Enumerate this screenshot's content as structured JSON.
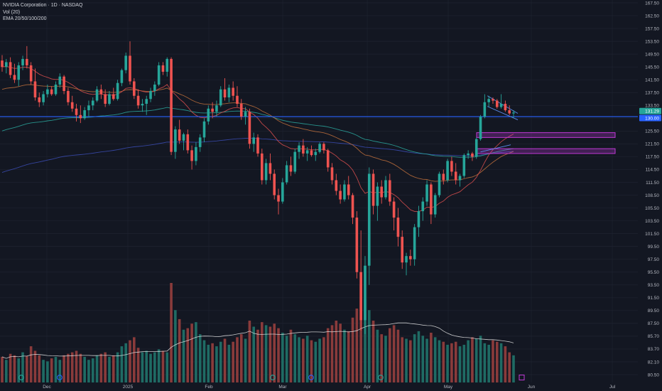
{
  "legend": {
    "title": "NVIDIA Corporation · 1D · NASDAQ",
    "volume": "Vol (20)",
    "ema": "EMA 20/50/100/200"
  },
  "colors": {
    "background": "#131722",
    "grid": "#1f2330",
    "up": "#26a69a",
    "down": "#ef5350",
    "up_volume": "#1f6b64",
    "down_volume": "#8a3b3b",
    "ema20": "#d34c4c",
    "ema50": "#b86b3b",
    "ema100": "#2aa198",
    "ema200": "#3949ab",
    "horizontal_line": "#2962ff",
    "zone": "#c039d6",
    "channel": "#5b8def",
    "volume_ma": "#e8e8e8"
  },
  "chart_data": {
    "type": "candlestick",
    "symbol": "NVIDIA Corporation",
    "interval": "1D",
    "exchange": "NASDAQ",
    "price_axis_ticks": [
      "167.50",
      "162.50",
      "157.50",
      "153.50",
      "149.50",
      "145.50",
      "141.50",
      "137.50",
      "133.50",
      "129.50",
      "125.50",
      "121.50",
      "117.50",
      "114.50",
      "111.50",
      "108.50",
      "105.50",
      "103.50",
      "101.50",
      "99.50",
      "97.50",
      "95.50",
      "93.50",
      "91.50",
      "89.50",
      "87.50",
      "85.70",
      "83.70",
      "82.10",
      "80.50"
    ],
    "time_axis_labels": [
      "Dec",
      "2025",
      "Feb",
      "Mar",
      "Apr",
      "May",
      "Jun",
      "Jul"
    ],
    "last_price_labels": [
      "131.29",
      "130.00"
    ],
    "horizontal_line_level": 130.0,
    "demand_zones": [
      {
        "low": 123.5,
        "high": 125.0
      },
      {
        "low": 118.5,
        "high": 120.0
      }
    ],
    "candles": [
      {
        "o": 147.5,
        "h": 149.2,
        "l": 144.0,
        "c": 145.5
      },
      {
        "o": 145.5,
        "h": 148.0,
        "l": 143.5,
        "c": 147.0
      },
      {
        "o": 147.0,
        "h": 148.5,
        "l": 142.0,
        "c": 143.0
      },
      {
        "o": 143.0,
        "h": 146.5,
        "l": 140.5,
        "c": 141.5
      },
      {
        "o": 141.5,
        "h": 147.0,
        "l": 139.5,
        "c": 146.0
      },
      {
        "o": 146.0,
        "h": 149.0,
        "l": 144.5,
        "c": 148.0
      },
      {
        "o": 148.0,
        "h": 152.0,
        "l": 145.0,
        "c": 146.0
      },
      {
        "o": 146.0,
        "h": 147.0,
        "l": 140.0,
        "c": 141.0
      },
      {
        "o": 141.0,
        "h": 145.0,
        "l": 135.0,
        "c": 136.0
      },
      {
        "o": 136.0,
        "h": 137.5,
        "l": 133.0,
        "c": 134.5
      },
      {
        "o": 134.5,
        "h": 138.0,
        "l": 133.5,
        "c": 137.0
      },
      {
        "o": 137.0,
        "h": 140.0,
        "l": 136.0,
        "c": 138.5
      },
      {
        "o": 138.5,
        "h": 139.5,
        "l": 136.5,
        "c": 137.0
      },
      {
        "o": 137.0,
        "h": 141.0,
        "l": 136.5,
        "c": 140.0
      },
      {
        "o": 140.0,
        "h": 143.5,
        "l": 139.0,
        "c": 142.5
      },
      {
        "o": 142.5,
        "h": 143.0,
        "l": 137.0,
        "c": 138.0
      },
      {
        "o": 138.0,
        "h": 139.0,
        "l": 133.5,
        "c": 134.5
      },
      {
        "o": 134.5,
        "h": 136.5,
        "l": 131.5,
        "c": 132.5
      },
      {
        "o": 132.5,
        "h": 134.0,
        "l": 128.5,
        "c": 130.5
      },
      {
        "o": 130.5,
        "h": 133.5,
        "l": 128.0,
        "c": 129.5
      },
      {
        "o": 129.5,
        "h": 133.0,
        "l": 129.0,
        "c": 132.0
      },
      {
        "o": 132.0,
        "h": 135.0,
        "l": 130.0,
        "c": 133.5
      },
      {
        "o": 133.5,
        "h": 136.0,
        "l": 132.0,
        "c": 135.0
      },
      {
        "o": 135.0,
        "h": 139.5,
        "l": 134.5,
        "c": 138.5
      },
      {
        "o": 138.5,
        "h": 140.0,
        "l": 135.5,
        "c": 137.0
      },
      {
        "o": 137.0,
        "h": 138.5,
        "l": 133.0,
        "c": 134.0
      },
      {
        "o": 134.0,
        "h": 138.0,
        "l": 133.5,
        "c": 137.0
      },
      {
        "o": 137.0,
        "h": 139.0,
        "l": 135.0,
        "c": 135.5
      },
      {
        "o": 135.5,
        "h": 141.5,
        "l": 135.0,
        "c": 140.5
      },
      {
        "o": 140.5,
        "h": 145.0,
        "l": 139.5,
        "c": 144.5
      },
      {
        "o": 144.5,
        "h": 150.0,
        "l": 143.5,
        "c": 149.0
      },
      {
        "o": 149.0,
        "h": 153.5,
        "l": 140.0,
        "c": 141.0
      },
      {
        "o": 141.0,
        "h": 142.0,
        "l": 135.5,
        "c": 136.5
      },
      {
        "o": 136.5,
        "h": 138.5,
        "l": 132.5,
        "c": 133.5
      },
      {
        "o": 133.5,
        "h": 135.5,
        "l": 131.5,
        "c": 134.0
      },
      {
        "o": 134.0,
        "h": 136.5,
        "l": 130.5,
        "c": 135.5
      },
      {
        "o": 135.5,
        "h": 139.0,
        "l": 134.5,
        "c": 138.0
      },
      {
        "o": 138.0,
        "h": 141.0,
        "l": 136.5,
        "c": 140.0
      },
      {
        "o": 140.0,
        "h": 147.0,
        "l": 139.5,
        "c": 146.0
      },
      {
        "o": 146.0,
        "h": 147.0,
        "l": 143.0,
        "c": 144.0
      },
      {
        "o": 144.0,
        "h": 148.5,
        "l": 142.5,
        "c": 148.0
      },
      {
        "o": 148.0,
        "h": 148.5,
        "l": 118.0,
        "c": 119.0
      },
      {
        "o": 119.0,
        "h": 127.0,
        "l": 117.0,
        "c": 126.0
      },
      {
        "o": 126.0,
        "h": 129.0,
        "l": 121.5,
        "c": 122.5
      },
      {
        "o": 122.5,
        "h": 125.0,
        "l": 119.5,
        "c": 124.5
      },
      {
        "o": 124.5,
        "h": 126.0,
        "l": 118.5,
        "c": 119.5
      },
      {
        "o": 119.5,
        "h": 121.0,
        "l": 114.5,
        "c": 116.5
      },
      {
        "o": 116.5,
        "h": 122.0,
        "l": 115.5,
        "c": 120.5
      },
      {
        "o": 120.5,
        "h": 124.5,
        "l": 119.0,
        "c": 123.5
      },
      {
        "o": 123.5,
        "h": 129.5,
        "l": 122.0,
        "c": 128.5
      },
      {
        "o": 128.5,
        "h": 133.5,
        "l": 127.5,
        "c": 132.5
      },
      {
        "o": 132.5,
        "h": 134.5,
        "l": 129.5,
        "c": 131.5
      },
      {
        "o": 131.5,
        "h": 135.0,
        "l": 130.0,
        "c": 133.5
      },
      {
        "o": 133.5,
        "h": 139.5,
        "l": 133.0,
        "c": 138.5
      },
      {
        "o": 138.5,
        "h": 142.0,
        "l": 135.0,
        "c": 136.0
      },
      {
        "o": 136.0,
        "h": 140.0,
        "l": 134.5,
        "c": 139.0
      },
      {
        "o": 139.0,
        "h": 141.0,
        "l": 135.0,
        "c": 136.5
      },
      {
        "o": 136.5,
        "h": 139.5,
        "l": 133.0,
        "c": 134.0
      },
      {
        "o": 134.0,
        "h": 135.5,
        "l": 129.0,
        "c": 130.0
      },
      {
        "o": 130.0,
        "h": 133.0,
        "l": 127.5,
        "c": 131.5
      },
      {
        "o": 131.5,
        "h": 132.5,
        "l": 120.0,
        "c": 121.5
      },
      {
        "o": 121.5,
        "h": 125.0,
        "l": 119.0,
        "c": 123.5
      },
      {
        "o": 123.5,
        "h": 124.5,
        "l": 117.5,
        "c": 118.5
      },
      {
        "o": 118.5,
        "h": 120.0,
        "l": 111.0,
        "c": 112.0
      },
      {
        "o": 112.0,
        "h": 117.0,
        "l": 111.0,
        "c": 116.0
      },
      {
        "o": 116.0,
        "h": 118.5,
        "l": 112.0,
        "c": 113.5
      },
      {
        "o": 113.5,
        "h": 114.5,
        "l": 107.5,
        "c": 108.5
      },
      {
        "o": 108.5,
        "h": 110.0,
        "l": 104.5,
        "c": 107.0
      },
      {
        "o": 107.0,
        "h": 112.5,
        "l": 106.5,
        "c": 111.5
      },
      {
        "o": 111.5,
        "h": 116.5,
        "l": 111.0,
        "c": 115.5
      },
      {
        "o": 115.5,
        "h": 117.5,
        "l": 113.0,
        "c": 114.0
      },
      {
        "o": 114.0,
        "h": 120.0,
        "l": 113.5,
        "c": 119.0
      },
      {
        "o": 119.0,
        "h": 122.0,
        "l": 117.0,
        "c": 121.0
      },
      {
        "o": 121.0,
        "h": 123.0,
        "l": 117.5,
        "c": 118.5
      },
      {
        "o": 118.5,
        "h": 120.5,
        "l": 116.5,
        "c": 119.5
      },
      {
        "o": 119.5,
        "h": 121.0,
        "l": 117.5,
        "c": 118.0
      },
      {
        "o": 118.0,
        "h": 120.0,
        "l": 116.5,
        "c": 119.0
      },
      {
        "o": 119.0,
        "h": 122.0,
        "l": 118.5,
        "c": 121.5
      },
      {
        "o": 121.5,
        "h": 122.0,
        "l": 118.5,
        "c": 119.5
      },
      {
        "o": 119.5,
        "h": 120.0,
        "l": 114.0,
        "c": 115.0
      },
      {
        "o": 115.0,
        "h": 116.0,
        "l": 111.0,
        "c": 112.0
      },
      {
        "o": 112.0,
        "h": 113.5,
        "l": 108.5,
        "c": 109.5
      },
      {
        "o": 109.5,
        "h": 111.0,
        "l": 106.5,
        "c": 107.5
      },
      {
        "o": 107.5,
        "h": 112.0,
        "l": 107.0,
        "c": 111.0
      },
      {
        "o": 111.0,
        "h": 113.0,
        "l": 107.5,
        "c": 108.5
      },
      {
        "o": 108.5,
        "h": 109.0,
        "l": 103.0,
        "c": 104.0
      },
      {
        "o": 104.0,
        "h": 105.0,
        "l": 94.5,
        "c": 95.5
      },
      {
        "o": 95.5,
        "h": 102.0,
        "l": 86.5,
        "c": 88.0
      },
      {
        "o": 88.0,
        "h": 98.0,
        "l": 86.0,
        "c": 96.5
      },
      {
        "o": 96.5,
        "h": 115.0,
        "l": 93.5,
        "c": 113.5
      },
      {
        "o": 113.5,
        "h": 114.5,
        "l": 104.5,
        "c": 106.0
      },
      {
        "o": 106.0,
        "h": 111.5,
        "l": 103.5,
        "c": 110.5
      },
      {
        "o": 110.5,
        "h": 112.0,
        "l": 106.5,
        "c": 108.0
      },
      {
        "o": 108.0,
        "h": 113.0,
        "l": 107.5,
        "c": 112.0
      },
      {
        "o": 112.0,
        "h": 113.5,
        "l": 106.0,
        "c": 107.0
      },
      {
        "o": 107.0,
        "h": 108.0,
        "l": 102.0,
        "c": 104.0
      },
      {
        "o": 104.0,
        "h": 105.5,
        "l": 99.5,
        "c": 101.0
      },
      {
        "o": 101.0,
        "h": 102.0,
        "l": 96.0,
        "c": 97.0
      },
      {
        "o": 97.0,
        "h": 98.5,
        "l": 95.0,
        "c": 98.0
      },
      {
        "o": 98.0,
        "h": 99.0,
        "l": 96.5,
        "c": 97.5
      },
      {
        "o": 97.5,
        "h": 103.0,
        "l": 96.5,
        "c": 102.5
      },
      {
        "o": 102.5,
        "h": 106.0,
        "l": 101.0,
        "c": 105.0
      },
      {
        "o": 105.0,
        "h": 108.0,
        "l": 103.5,
        "c": 107.0
      },
      {
        "o": 107.0,
        "h": 112.0,
        "l": 106.0,
        "c": 111.0
      },
      {
        "o": 111.0,
        "h": 111.5,
        "l": 103.0,
        "c": 104.5
      },
      {
        "o": 104.5,
        "h": 109.0,
        "l": 104.0,
        "c": 108.5
      },
      {
        "o": 108.5,
        "h": 114.0,
        "l": 108.0,
        "c": 113.5
      },
      {
        "o": 113.5,
        "h": 114.5,
        "l": 111.0,
        "c": 112.0
      },
      {
        "o": 112.0,
        "h": 117.0,
        "l": 111.5,
        "c": 116.5
      },
      {
        "o": 116.5,
        "h": 117.5,
        "l": 113.0,
        "c": 114.0
      },
      {
        "o": 114.0,
        "h": 116.0,
        "l": 111.0,
        "c": 112.0
      },
      {
        "o": 112.0,
        "h": 113.5,
        "l": 110.5,
        "c": 113.0
      },
      {
        "o": 113.0,
        "h": 118.5,
        "l": 112.5,
        "c": 118.0
      },
      {
        "o": 118.0,
        "h": 119.5,
        "l": 117.0,
        "c": 118.5
      },
      {
        "o": 118.5,
        "h": 119.0,
        "l": 116.5,
        "c": 117.5
      },
      {
        "o": 117.5,
        "h": 123.5,
        "l": 117.0,
        "c": 123.0
      },
      {
        "o": 123.0,
        "h": 130.5,
        "l": 122.5,
        "c": 130.0
      },
      {
        "o": 130.0,
        "h": 137.0,
        "l": 129.5,
        "c": 134.5
      },
      {
        "o": 134.5,
        "h": 136.5,
        "l": 133.0,
        "c": 135.5
      },
      {
        "o": 135.5,
        "h": 136.0,
        "l": 134.0,
        "c": 135.0
      },
      {
        "o": 135.0,
        "h": 135.5,
        "l": 132.5,
        "c": 133.0
      },
      {
        "o": 133.0,
        "h": 137.0,
        "l": 132.5,
        "c": 134.0
      },
      {
        "o": 134.0,
        "h": 135.0,
        "l": 131.5,
        "c": 132.0
      },
      {
        "o": 132.0,
        "h": 133.5,
        "l": 130.5,
        "c": 131.0
      },
      {
        "o": 131.0,
        "h": 132.0,
        "l": 129.5,
        "c": 131.29
      }
    ],
    "volumes": [
      34,
      30,
      38,
      36,
      32,
      40,
      35,
      48,
      42,
      36,
      30,
      28,
      32,
      34,
      30,
      36,
      38,
      40,
      42,
      38,
      34,
      30,
      32,
      36,
      38,
      40,
      34,
      36,
      40,
      48,
      52,
      56,
      60,
      46,
      40,
      42,
      38,
      40,
      44,
      42,
      40,
      132,
      96,
      84,
      70,
      72,
      78,
      80,
      64,
      56,
      50,
      52,
      48,
      54,
      58,
      50,
      54,
      60,
      64,
      58,
      82,
      74,
      70,
      80,
      76,
      74,
      78,
      72,
      66,
      62,
      70,
      64,
      60,
      58,
      62,
      56,
      54,
      58,
      60,
      72,
      76,
      82,
      78,
      70,
      68,
      86,
      98,
      130,
      110,
      96,
      82,
      70,
      64,
      62,
      72,
      76,
      70,
      60,
      58,
      56,
      64,
      68,
      62,
      58,
      66,
      60,
      56,
      54,
      50,
      52,
      54,
      48,
      50,
      56,
      60,
      58,
      62,
      52,
      50,
      56,
      54,
      52,
      48,
      40,
      36
    ],
    "volume_axis_ticks": [
      "87.50",
      "85.70",
      "83.70",
      "82.10",
      "80.50"
    ]
  }
}
